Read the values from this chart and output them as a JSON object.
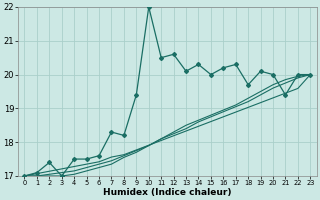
{
  "title": "",
  "xlabel": "Humidex (Indice chaleur)",
  "ylabel": "",
  "bg_color": "#cce8e4",
  "grid_color": "#aacfca",
  "line_color": "#1a6e64",
  "xlim": [
    -0.5,
    23.5
  ],
  "ylim": [
    17,
    22
  ],
  "xticks": [
    0,
    1,
    2,
    3,
    4,
    5,
    6,
    7,
    8,
    9,
    10,
    11,
    12,
    13,
    14,
    15,
    16,
    17,
    18,
    19,
    20,
    21,
    22,
    23
  ],
  "yticks": [
    17,
    18,
    19,
    20,
    21,
    22
  ],
  "series_jagged": [
    17.0,
    17.1,
    17.4,
    17.0,
    17.5,
    17.5,
    17.6,
    18.3,
    18.2,
    19.4,
    22.0,
    20.5,
    20.6,
    20.1,
    20.3,
    20.0,
    20.2,
    20.3,
    19.7,
    20.1,
    20.0,
    19.4,
    20.0,
    20.0
  ],
  "series_trend1": [
    17.0,
    17.07,
    17.14,
    17.21,
    17.28,
    17.35,
    17.42,
    17.56,
    17.63,
    17.77,
    17.91,
    18.05,
    18.19,
    18.33,
    18.47,
    18.61,
    18.75,
    18.89,
    19.03,
    19.17,
    19.31,
    19.45,
    19.59,
    20.0
  ],
  "series_trend2": [
    17.0,
    17.0,
    17.05,
    17.1,
    17.15,
    17.25,
    17.35,
    17.45,
    17.6,
    17.75,
    17.9,
    18.1,
    18.25,
    18.4,
    18.6,
    18.75,
    18.9,
    19.05,
    19.2,
    19.4,
    19.6,
    19.75,
    19.9,
    20.0
  ],
  "series_trend3": [
    17.0,
    17.0,
    17.0,
    17.0,
    17.05,
    17.15,
    17.25,
    17.35,
    17.55,
    17.7,
    17.9,
    18.1,
    18.3,
    18.5,
    18.65,
    18.8,
    18.95,
    19.1,
    19.3,
    19.5,
    19.7,
    19.85,
    19.95,
    20.0
  ]
}
